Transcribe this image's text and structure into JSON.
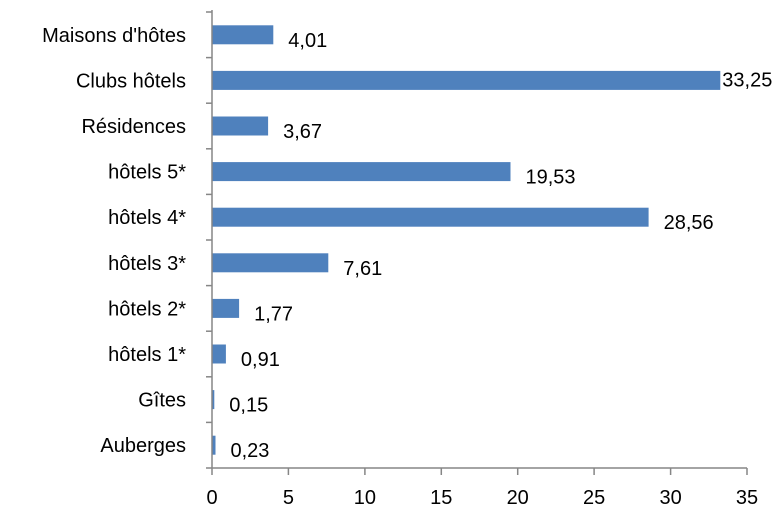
{
  "chart_data": {
    "type": "bar",
    "orientation": "horizontal",
    "title": "",
    "xlabel": "",
    "ylabel": "",
    "categories": [
      "Maisons d'hôtes",
      "Clubs hôtels",
      "Résidences",
      "hôtels 5*",
      "hôtels 4*",
      "hôtels 3*",
      "hôtels 2*",
      "hôtels 1*",
      "Gîtes",
      "Auberges"
    ],
    "values": [
      4.01,
      33.25,
      3.67,
      19.53,
      28.56,
      7.61,
      1.77,
      0.91,
      0.15,
      0.23
    ],
    "value_labels": [
      "4,01",
      "33,25",
      "3,67",
      "19,53",
      "28,56",
      "7,61",
      "1,77",
      "0,91",
      "0,15",
      "0,23"
    ],
    "xlim": [
      0,
      35
    ],
    "xticks": [
      0,
      5,
      10,
      15,
      20,
      25,
      30,
      35
    ],
    "grid": false,
    "legend": "none",
    "bar_color": "#4f81bd"
  }
}
